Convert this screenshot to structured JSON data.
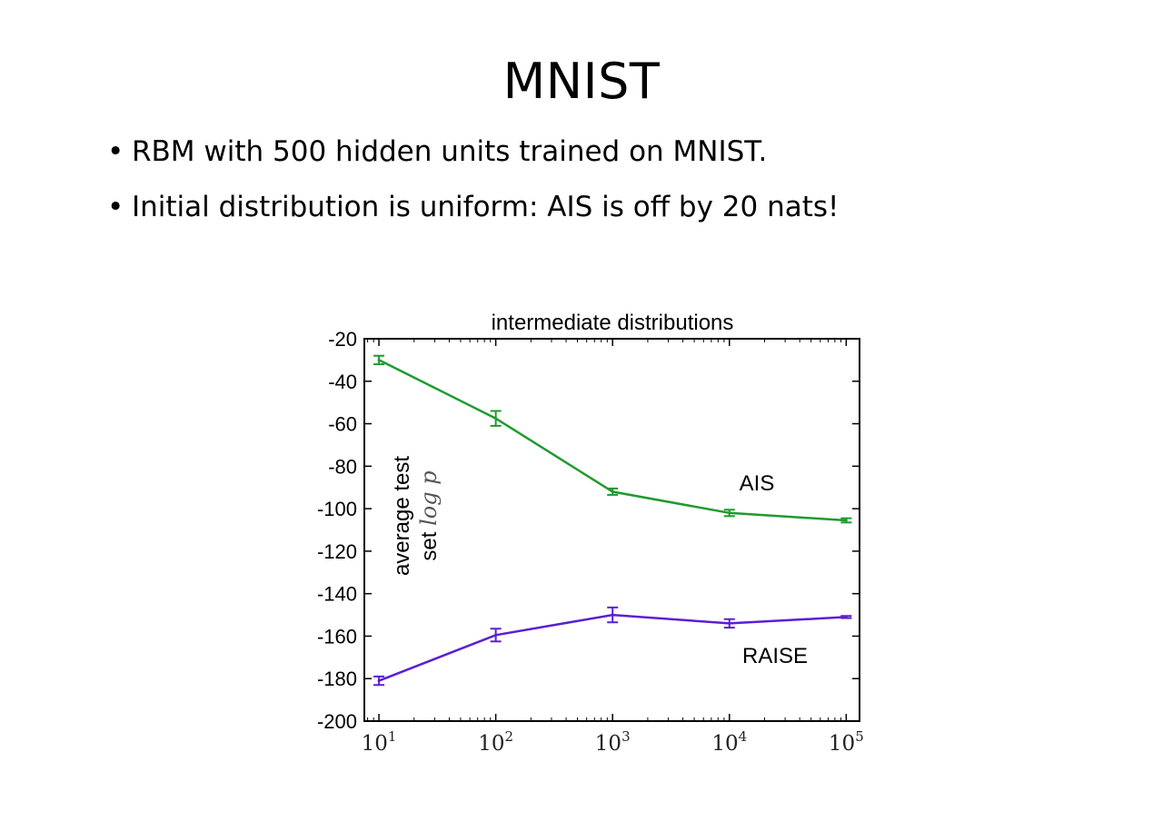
{
  "slide": {
    "title": "MNIST",
    "bullets": [
      "RBM with 500 hidden units trained on MNIST.",
      "Initial distribution is uniform: AIS is off by 20 nats!"
    ],
    "bullet_glyph": "•"
  },
  "chart_data": {
    "type": "line",
    "title": "intermediate distributions",
    "xlabel": "",
    "ylabel": "average test set log p",
    "ylabel_lines": [
      "average test",
      "set"
    ],
    "ylabel_math": "log p",
    "x_scale": "log",
    "x": [
      10,
      100,
      1000,
      10000,
      100000
    ],
    "x_tick_labels": [
      {
        "base": "10",
        "exp": "1"
      },
      {
        "base": "10",
        "exp": "2"
      },
      {
        "base": "10",
        "exp": "3"
      },
      {
        "base": "10",
        "exp": "4"
      },
      {
        "base": "10",
        "exp": "5"
      }
    ],
    "xlim": [
      7.5,
      130000
    ],
    "ylim": [
      -200,
      -20
    ],
    "y_ticks": [
      -20,
      -40,
      -60,
      -80,
      -100,
      -120,
      -140,
      -160,
      -180,
      -200
    ],
    "grid": false,
    "series": [
      {
        "name": "AIS",
        "color": "#1f9a2e",
        "values": [
          -30,
          -57.5,
          -92,
          -102,
          -105.5
        ],
        "errors": [
          2,
          3.5,
          1.5,
          1.5,
          1
        ]
      },
      {
        "name": "RAISE",
        "color": "#5a1fd6",
        "values": [
          -181,
          -159.5,
          -150,
          -154,
          -151
        ],
        "errors": [
          2,
          3,
          3.5,
          2,
          0.5
        ]
      }
    ]
  }
}
